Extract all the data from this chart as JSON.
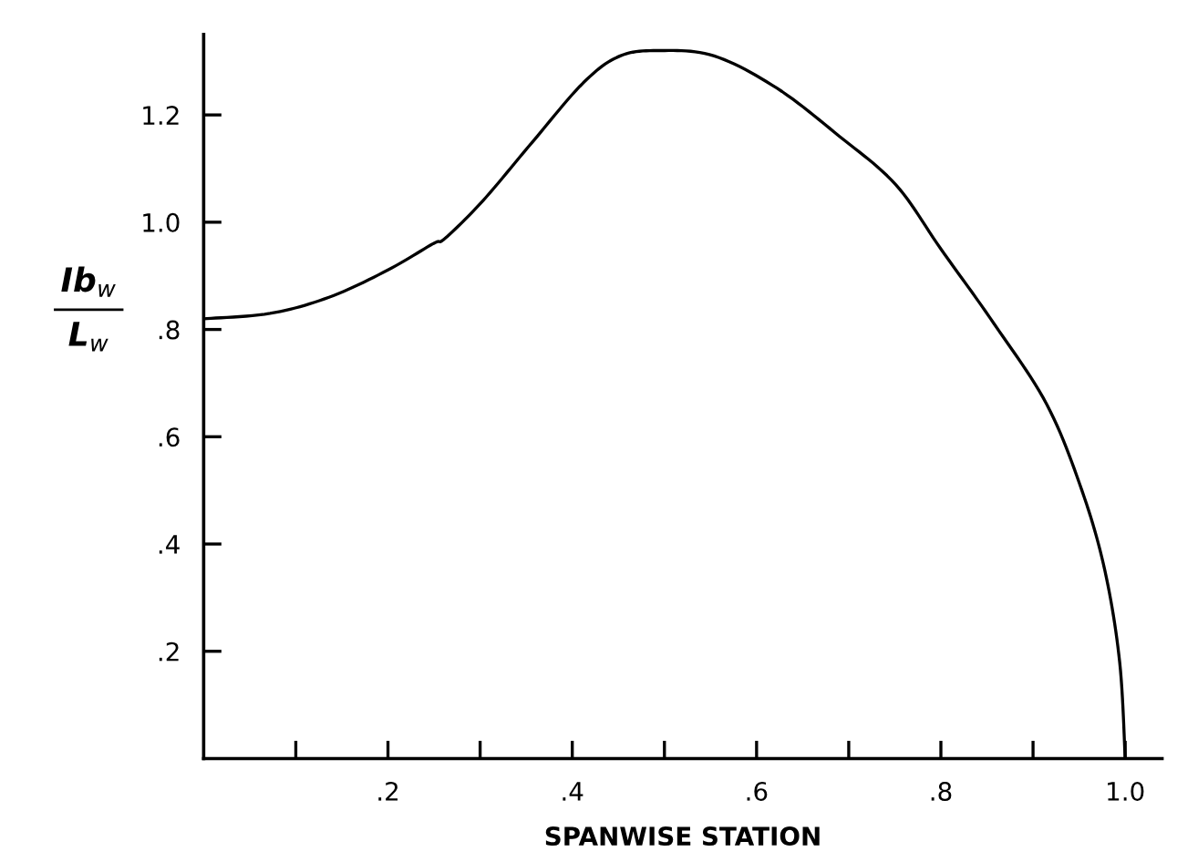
{
  "chart_data": {
    "type": "line",
    "xlabel": "SPANWISE STATION",
    "ylabel": "Ib$_{w}$\nL$_{w}$",
    "x": [
      0,
      0.072,
      0.136,
      0.199,
      0.249,
      0.262,
      0.303,
      0.357,
      0.412,
      0.452,
      0.496,
      0.554,
      0.622,
      0.69,
      0.751,
      0.8,
      0.858,
      0.915,
      0.953,
      0.978,
      0.994,
      1.0
    ],
    "series": [
      {
        "color": "#000000",
        "values": [
          0.82,
          0.83,
          0.86,
          0.91,
          0.96,
          0.97,
          1.04,
          1.15,
          1.26,
          1.31,
          1.32,
          1.31,
          1.25,
          1.16,
          1.07,
          0.95,
          0.81,
          0.66,
          0.5,
          0.35,
          0.18,
          0
        ]
      }
    ],
    "xlim": [
      0,
      1.04
    ],
    "ylim": [
      0,
      1.35
    ],
    "xticks": [
      {
        "value": 0.1,
        "label": null
      },
      {
        "value": 0.2,
        "label": ".2"
      },
      {
        "value": 0.3,
        "label": null
      },
      {
        "value": 0.4,
        "label": ".4"
      },
      {
        "value": 0.5,
        "label": null
      },
      {
        "value": 0.6,
        "label": ".6"
      },
      {
        "value": 0.7,
        "label": null
      },
      {
        "value": 0.8,
        "label": ".8"
      },
      {
        "value": 0.9,
        "label": null
      },
      {
        "value": 1.0,
        "label": "1.0"
      }
    ],
    "yticks": [
      {
        "value": 0.2,
        "label": ".2"
      },
      {
        "value": 0.4,
        "label": ".4"
      },
      {
        "value": 0.6,
        "label": ".6"
      },
      {
        "value": 0.8,
        "label": ".8"
      },
      {
        "value": 1.0,
        "label": "1.0"
      },
      {
        "value": 1.2,
        "label": "1.2"
      }
    ],
    "grid": false,
    "legend": false,
    "marker": "none",
    "line_style": "solid"
  }
}
